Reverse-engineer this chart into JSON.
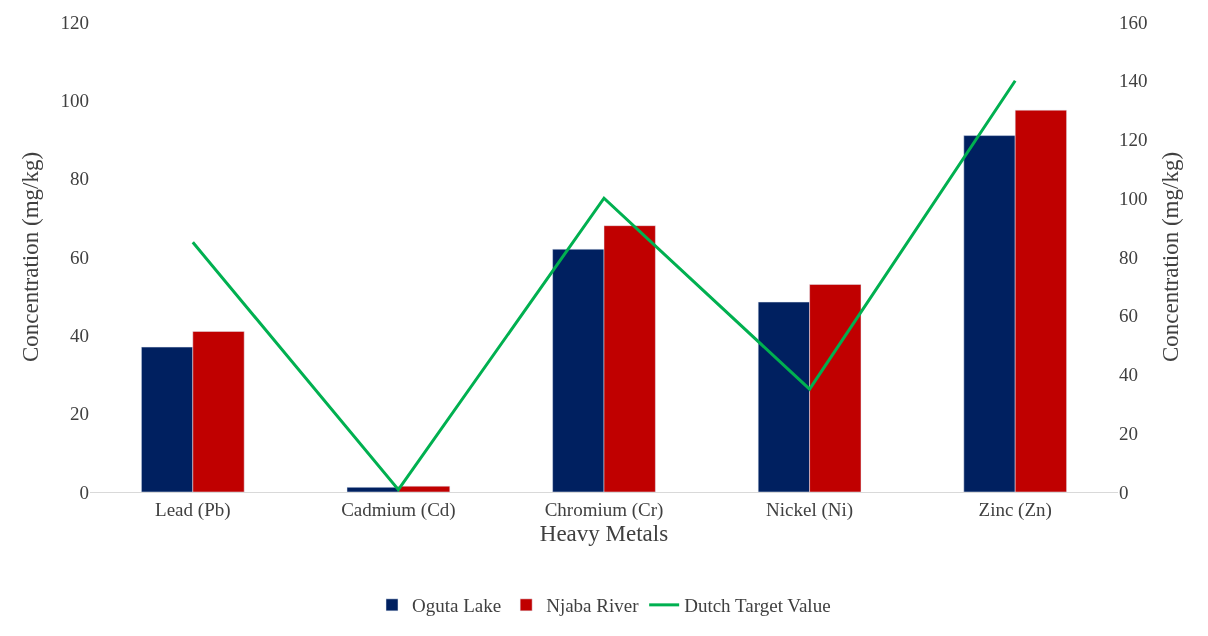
{
  "chart_data": {
    "type": "bar",
    "xlabel": "Heavy Metals",
    "ylabel": "Concentration (mg/kg)",
    "y2label": "Concentration (mg/kg)",
    "categories": [
      "Lead (Pb)",
      "Cadmium (Cd)",
      "Chromium (Cr)",
      "Nickel (Ni)",
      "Zinc (Zn)"
    ],
    "series": [
      {
        "name": "Oguta Lake",
        "color": "#002060",
        "values": [
          37,
          1.2,
          62,
          48.5,
          91
        ]
      },
      {
        "name": "Njaba River",
        "color": "#c00000",
        "values": [
          41,
          1.5,
          68,
          53,
          97.5
        ]
      },
      {
        "name": "Dutch Target Value",
        "color": "#00b050",
        "type": "line",
        "axis": "y2",
        "values": [
          85,
          0.8,
          100,
          35,
          140
        ]
      }
    ],
    "ylim": [
      0,
      120
    ],
    "yticks": [
      0,
      20,
      40,
      60,
      80,
      100,
      120
    ],
    "y2lim": [
      0,
      160
    ],
    "y2ticks": [
      0,
      20,
      40,
      60,
      80,
      100,
      120,
      140,
      160
    ],
    "legend": "bottom"
  }
}
